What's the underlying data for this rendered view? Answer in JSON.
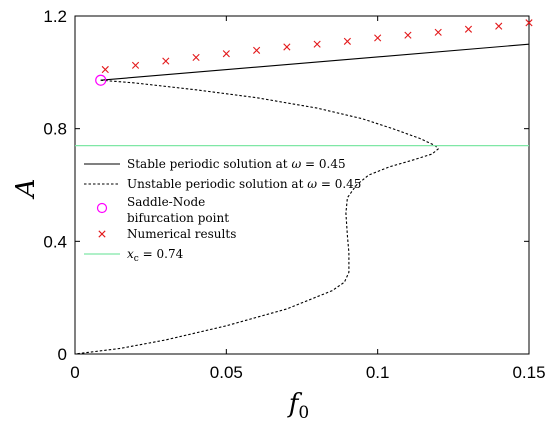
{
  "chart_data": {
    "type": "line",
    "xlabel": "f0",
    "ylabel": "A",
    "xlim": [
      0,
      0.15
    ],
    "ylim": [
      0,
      1.2
    ],
    "xticks": [
      "0",
      "0.05",
      "0.1",
      "0.15"
    ],
    "yticks": [
      "0",
      "0.4",
      "0.8",
      "1.2"
    ],
    "grid": false,
    "legend_position": "middle-left",
    "series": [
      {
        "name": "Stable periodic solution at ω = 0.45",
        "style": "solid",
        "color": "#000000",
        "points": [
          [
            0.0085,
            0.972
          ],
          [
            0.15,
            1.1
          ]
        ]
      },
      {
        "name": "Unstable periodic solution at ω = 0.45",
        "style": "dashed",
        "color": "#000000",
        "points": [
          [
            0.0085,
            0.972
          ],
          [
            0.02,
            0.962
          ],
          [
            0.04,
            0.938
          ],
          [
            0.06,
            0.91
          ],
          [
            0.08,
            0.873
          ],
          [
            0.095,
            0.835
          ],
          [
            0.105,
            0.8
          ],
          [
            0.114,
            0.765
          ],
          [
            0.119,
            0.74
          ],
          [
            0.12,
            0.728
          ],
          [
            0.118,
            0.71
          ],
          [
            0.112,
            0.69
          ],
          [
            0.104,
            0.665
          ],
          [
            0.097,
            0.635
          ],
          [
            0.093,
            0.6
          ],
          [
            0.09,
            0.555
          ],
          [
            0.0895,
            0.5
          ],
          [
            0.09,
            0.42
          ],
          [
            0.0905,
            0.36
          ],
          [
            0.0905,
            0.29
          ],
          [
            0.089,
            0.255
          ],
          [
            0.085,
            0.225
          ],
          [
            0.07,
            0.16
          ],
          [
            0.05,
            0.1
          ],
          [
            0.03,
            0.05
          ],
          [
            0.015,
            0.02
          ],
          [
            0.0,
            0.0
          ]
        ]
      },
      {
        "name": "Saddle-Node bifurcation point",
        "style": "marker-circle",
        "color": "#ff00ff",
        "points": [
          [
            0.0085,
            0.972
          ]
        ]
      },
      {
        "name": "Numerical results",
        "style": "marker-x",
        "color": "#e31a1c",
        "points": [
          [
            0.01,
            1.01
          ],
          [
            0.02,
            1.025
          ],
          [
            0.03,
            1.04
          ],
          [
            0.04,
            1.053
          ],
          [
            0.05,
            1.066
          ],
          [
            0.06,
            1.078
          ],
          [
            0.07,
            1.09
          ],
          [
            0.08,
            1.1
          ],
          [
            0.09,
            1.11
          ],
          [
            0.1,
            1.122
          ],
          [
            0.11,
            1.132
          ],
          [
            0.12,
            1.142
          ],
          [
            0.13,
            1.153
          ],
          [
            0.14,
            1.164
          ],
          [
            0.15,
            1.176
          ]
        ]
      },
      {
        "name": "x_c = 0.74",
        "style": "solid",
        "color": "#7fe7a6",
        "points": [
          [
            0,
            0.74
          ],
          [
            0.15,
            0.74
          ]
        ]
      }
    ],
    "legend": [
      {
        "text": "Stable periodic solution at ω = 0.45",
        "marker": "solid-line"
      },
      {
        "text": "Unstable periodic solution at ω = 0.45",
        "marker": "dashed-line"
      },
      {
        "text": "Saddle-Node",
        "text2": "bifurcation point",
        "marker": "circle"
      },
      {
        "text": "Numerical results",
        "marker": "x"
      },
      {
        "text_italic": "x",
        "text_sub": "c",
        "text": " = 0.74",
        "marker": "green-line"
      }
    ]
  }
}
